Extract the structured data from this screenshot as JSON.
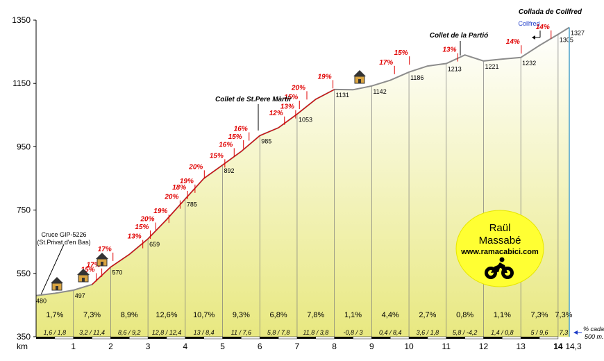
{
  "chart_data": {
    "type": "area",
    "title": "Collada de Collfred",
    "xlabel": "km",
    "ylabel": "",
    "xlim": [
      0,
      14.3
    ],
    "ylim": [
      350,
      1350
    ],
    "y_ticks": [
      350,
      550,
      750,
      950,
      1150,
      1350
    ],
    "x_ticks": [
      "1",
      "2",
      "3",
      "4",
      "5",
      "6",
      "7",
      "8",
      "9",
      "10",
      "11",
      "12",
      "13",
      "14",
      "14,3"
    ],
    "x_tick_values": [
      1,
      2,
      3,
      4,
      5,
      6,
      7,
      8,
      9,
      10,
      11,
      12,
      13,
      14,
      14.3
    ],
    "profile": [
      [
        0,
        480
      ],
      [
        0.5,
        487
      ],
      [
        1,
        497
      ],
      [
        1.5,
        515
      ],
      [
        2,
        570
      ],
      [
        2.5,
        610
      ],
      [
        3,
        659
      ],
      [
        3.5,
        720
      ],
      [
        4,
        785
      ],
      [
        4.5,
        850
      ],
      [
        5,
        892
      ],
      [
        5.5,
        935
      ],
      [
        6,
        985
      ],
      [
        6.5,
        1010
      ],
      [
        7,
        1053
      ],
      [
        7.5,
        1100
      ],
      [
        8,
        1131
      ],
      [
        8.5,
        1130
      ],
      [
        9,
        1142
      ],
      [
        9.5,
        1160
      ],
      [
        10,
        1186
      ],
      [
        10.5,
        1205
      ],
      [
        11,
        1213
      ],
      [
        11.5,
        1240
      ],
      [
        12,
        1221
      ],
      [
        12.5,
        1227
      ],
      [
        13,
        1232
      ],
      [
        13.5,
        1270
      ],
      [
        14,
        1305
      ],
      [
        14.3,
        1327
      ]
    ],
    "km_altitudes": [
      {
        "km": 0,
        "alt": "480"
      },
      {
        "km": 1,
        "alt": "497"
      },
      {
        "km": 2,
        "alt": "570"
      },
      {
        "km": 3,
        "alt": "659"
      },
      {
        "km": 4,
        "alt": "785"
      },
      {
        "km": 5,
        "alt": "892"
      },
      {
        "km": 6,
        "alt": "985"
      },
      {
        "km": 7,
        "alt": "1053"
      },
      {
        "km": 8,
        "alt": "1131"
      },
      {
        "km": 9,
        "alt": "1142"
      },
      {
        "km": 10,
        "alt": "1186"
      },
      {
        "km": 11,
        "alt": "1213"
      },
      {
        "km": 12,
        "alt": "1221"
      },
      {
        "km": 13,
        "alt": "1232"
      },
      {
        "km": 14,
        "alt": "1305"
      },
      {
        "km": 14.3,
        "alt": "1327"
      }
    ],
    "segments": [
      {
        "avg": "1,7%",
        "range": "1,6 / 1,8"
      },
      {
        "avg": "7,3%",
        "range": "3,2 / 11,4"
      },
      {
        "avg": "8,9%",
        "range": "8,6 / 9,2"
      },
      {
        "avg": "12,6%",
        "range": "12,8 / 12,4"
      },
      {
        "avg": "10,7%",
        "range": "13 / 8,4"
      },
      {
        "avg": "9,3%",
        "range": "11 / 7,6"
      },
      {
        "avg": "6,8%",
        "range": "5,8 / 7,8"
      },
      {
        "avg": "7,8%",
        "range": "11,8 / 3,8"
      },
      {
        "avg": "1,1%",
        "range": "-0,8 / 3"
      },
      {
        "avg": "4,4%",
        "range": "0,4 / 8,4"
      },
      {
        "avg": "2,7%",
        "range": "3,6 / 1,8"
      },
      {
        "avg": "0,8%",
        "range": "5,8 / -4,2"
      },
      {
        "avg": "1,1%",
        "range": "1,4 / 0,8"
      },
      {
        "avg": "7,3%",
        "range": "5 / 9,6"
      },
      {
        "avg": "7,3%",
        "range": "7,3"
      }
    ],
    "gradient_labels": [
      {
        "km": 1.5,
        "alt": 555,
        "text": "15%"
      },
      {
        "km": 1.65,
        "alt": 570,
        "text": "17%"
      },
      {
        "km": 1.95,
        "alt": 620,
        "text": "17%"
      },
      {
        "km": 2.75,
        "alt": 660,
        "text": "13%"
      },
      {
        "km": 2.95,
        "alt": 690,
        "text": "15%"
      },
      {
        "km": 3.1,
        "alt": 715,
        "text": "20%"
      },
      {
        "km": 3.45,
        "alt": 740,
        "text": "19%"
      },
      {
        "km": 3.75,
        "alt": 785,
        "text": "20%"
      },
      {
        "km": 3.95,
        "alt": 815,
        "text": "18%"
      },
      {
        "km": 4.15,
        "alt": 835,
        "text": "19%"
      },
      {
        "km": 4.4,
        "alt": 880,
        "text": "20%"
      },
      {
        "km": 4.95,
        "alt": 915,
        "text": "15%"
      },
      {
        "km": 5.2,
        "alt": 950,
        "text": "16%"
      },
      {
        "km": 5.45,
        "alt": 975,
        "text": "15%"
      },
      {
        "km": 5.6,
        "alt": 1000,
        "text": "16%"
      },
      {
        "km": 6.55,
        "alt": 1050,
        "text": "12%"
      },
      {
        "km": 6.85,
        "alt": 1070,
        "text": "13%"
      },
      {
        "km": 6.95,
        "alt": 1100,
        "text": "15%"
      },
      {
        "km": 7.15,
        "alt": 1130,
        "text": "20%"
      },
      {
        "km": 7.85,
        "alt": 1165,
        "text": "19%"
      },
      {
        "km": 9.5,
        "alt": 1210,
        "text": "17%"
      },
      {
        "km": 9.9,
        "alt": 1240,
        "text": "15%"
      },
      {
        "km": 11.2,
        "alt": 1250,
        "text": "13%"
      },
      {
        "km": 12.9,
        "alt": 1275,
        "text": "14%"
      },
      {
        "km": 13.7,
        "alt": 1322,
        "text": "14%"
      }
    ],
    "places": [
      {
        "km": 0.1,
        "alt": 480,
        "label_lines": [
          "Cruce GIP-5226",
          "(St.Privat d'en Bas)"
        ]
      },
      {
        "km": 6.2,
        "alt": 995,
        "label_lines": [
          "Collet de St.Pere Màrtir"
        ]
      },
      {
        "km": 11.5,
        "alt": 1240,
        "label_lines": [
          "Collet de la Partió"
        ]
      },
      {
        "km": 14.3,
        "alt": 1327,
        "label_lines": [
          "Collada de Collfred"
        ]
      }
    ],
    "side_note": "Collfred",
    "footnote": [
      "% cada",
      "500 m."
    ]
  },
  "badge": {
    "title_line1": "Raül",
    "title_line2": "Massabé",
    "url": "www.ramacabici.com"
  },
  "colors": {
    "fill": "#f2f2b0",
    "line": "#8c8c8c",
    "gradient_text": "#e00000",
    "badge": "#ffff33",
    "axis_line": "#4aa0c8",
    "side_note": "#1e3cc8"
  }
}
